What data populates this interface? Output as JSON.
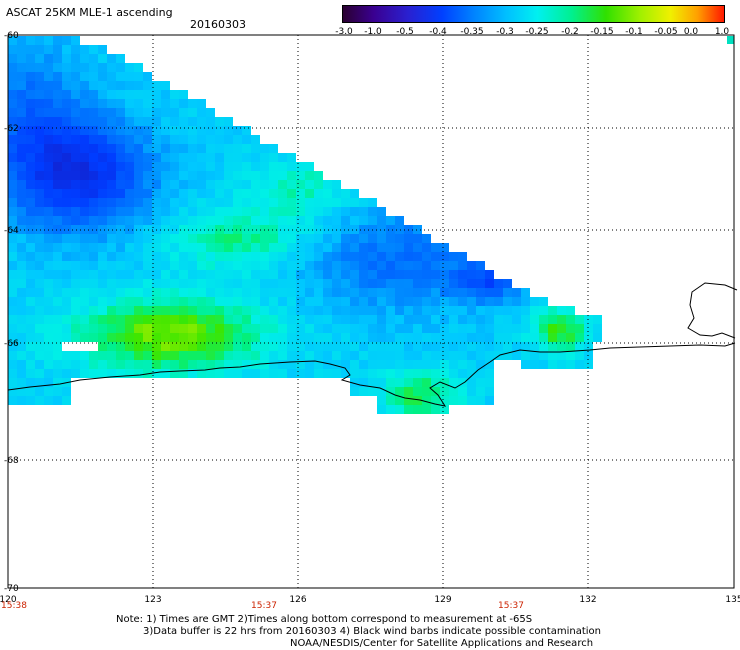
{
  "header": {
    "title": "ASCAT 25KM MLE-1 ascending",
    "date": "20160303"
  },
  "colorbar": {
    "labels": [
      "-3.0",
      "-1.0",
      "-0.5",
      "-0.4",
      "-0.35",
      "-0.3",
      "-0.25",
      "-0.2",
      "-0.15",
      "-0.1",
      "-0.05",
      "0.0",
      "1.0"
    ],
    "colors": [
      "#2a0030",
      "#3a0080",
      "#2a20d0",
      "#0040ff",
      "#0080ff",
      "#00c0ff",
      "#00f0f0",
      "#00f090",
      "#30e000",
      "#a0f000",
      "#f0f000",
      "#ffb000",
      "#ff2000"
    ]
  },
  "map": {
    "lon_labels": [
      "120",
      "123",
      "126",
      "129",
      "132",
      "135"
    ],
    "lat_labels": [
      "-60",
      "-62",
      "-64",
      "-66",
      "-68",
      "-70"
    ],
    "time_labels": [
      "15:38",
      "15:37",
      "15:37"
    ],
    "coastline_color": "#000000",
    "gridline_style": "dotted"
  },
  "notes": {
    "line1": "Note: 1) Times are GMT 2)Times along bottom correspond to measurement at -65S",
    "line2": "3)Data buffer is 22 hrs from 20160303 4) Black wind barbs indicate possible contamination",
    "line3": "NOAA/NESDIS/Center for Satellite Applications and Research"
  }
}
